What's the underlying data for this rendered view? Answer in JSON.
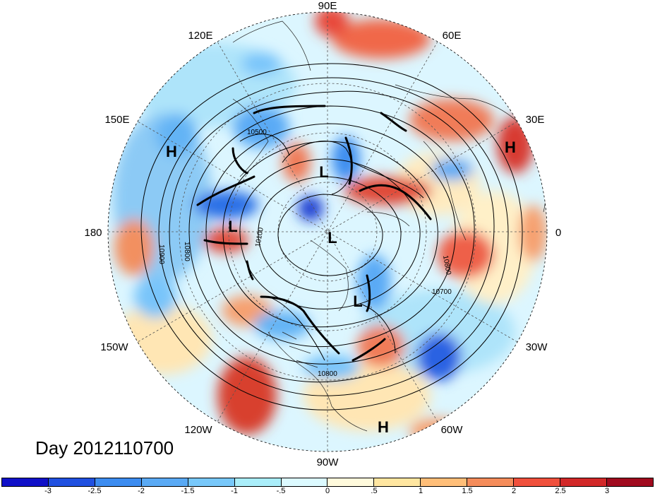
{
  "day_label": "Day 2012110700",
  "lon_labels": [
    "90E",
    "60E",
    "30E",
    "0",
    "30W",
    "60W",
    "90W",
    "120W",
    "150W",
    "180",
    "150E",
    "120E"
  ],
  "pressure_centers": [
    {
      "symbol": "H",
      "name": "high-north-pacific"
    },
    {
      "symbol": "H",
      "name": "high-europe"
    },
    {
      "symbol": "H",
      "name": "high-caribbean"
    },
    {
      "symbol": "L",
      "name": "low-siberia"
    },
    {
      "symbol": "L",
      "name": "low-bering"
    },
    {
      "symbol": "L",
      "name": "low-pole"
    },
    {
      "symbol": "L",
      "name": "low-labrador"
    }
  ],
  "contour_labels": [
    "10500",
    "10800",
    "10900",
    "10100",
    "10800",
    "10700",
    "10800"
  ],
  "colorbar": {
    "colors": [
      "#1010c8",
      "#2050e0",
      "#3c8cf0",
      "#5aaaf5",
      "#78c8fa",
      "#aaeefa",
      "#dcfaff",
      "#fffadc",
      "#ffe6a0",
      "#ffbe78",
      "#f58c5a",
      "#f0503c",
      "#d22828",
      "#a00a1e"
    ],
    "ticks": [
      "-3",
      "-2.5",
      "-2",
      "-1.5",
      "-1",
      "-.5",
      "0",
      ".5",
      "1",
      "1.5",
      "2",
      "2.5",
      "3"
    ]
  }
}
